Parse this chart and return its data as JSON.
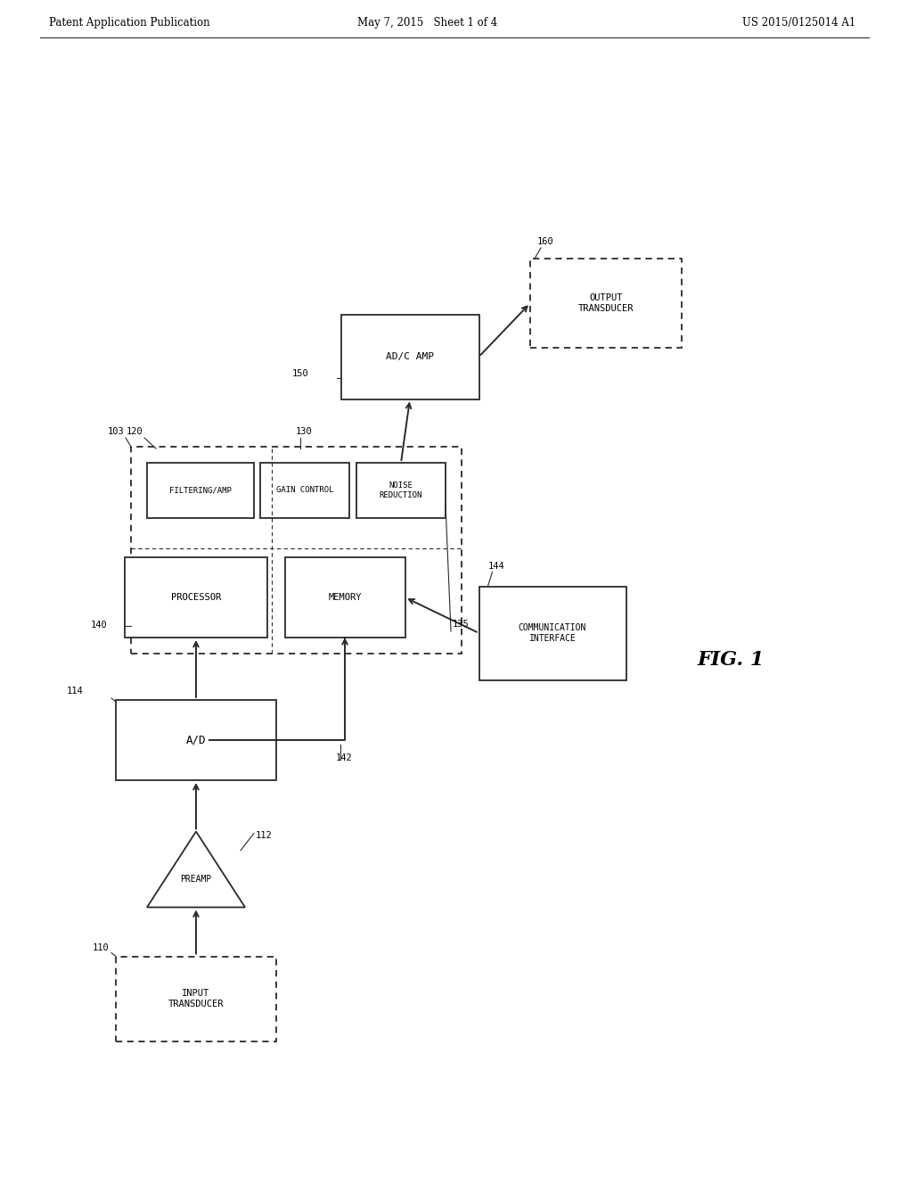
{
  "background_color": "#ffffff",
  "line_color": "#2a2a2a",
  "header_left": "Patent Application Publication",
  "header_mid": "May 7, 2015   Sheet 1 of 4",
  "header_right": "US 2015/0125014 A1",
  "figure_label": "FIG. 1"
}
